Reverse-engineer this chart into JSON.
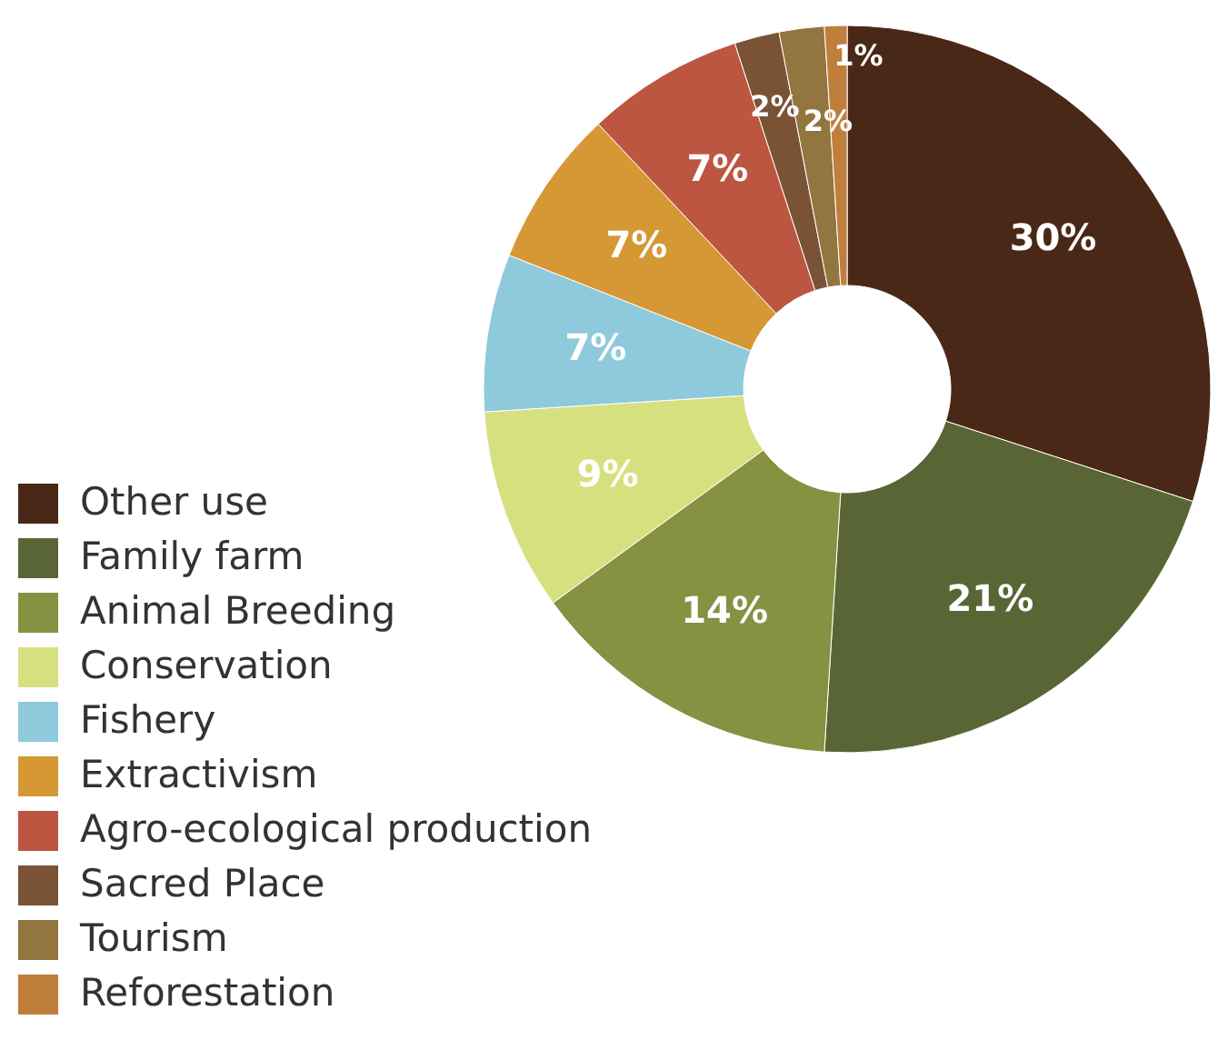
{
  "chart_data": {
    "type": "donut",
    "categories": [
      "Other use",
      "Family farm",
      "Animal Breeding",
      "Conservation",
      "Fishery",
      "Extractivism",
      "Agro-ecological production",
      "Sacred Place",
      "Tourism",
      "Reforestation"
    ],
    "values": [
      30,
      21,
      14,
      9,
      7,
      7,
      7,
      2,
      2,
      1
    ],
    "colors": [
      "#4a2817",
      "#5a6535",
      "#869142",
      "#d6e07f",
      "#8ecadb",
      "#d59834",
      "#bd5641",
      "#7a5236",
      "#93753f",
      "#c07e3c"
    ],
    "value_labels": [
      "30%",
      "21%",
      "14%",
      "9%",
      "7%",
      "7%",
      "7%",
      "2%",
      "2%",
      "1%"
    ],
    "legend": "bottom left"
  }
}
